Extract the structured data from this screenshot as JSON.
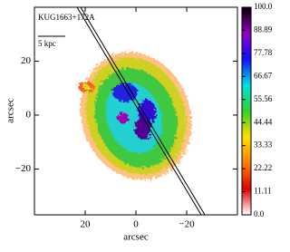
{
  "chart_data": {
    "type": "image",
    "annotation": "KUG1663+172A",
    "scale_label": "5 kpc",
    "xlabel": "arcsec",
    "ylabel": "arcsec",
    "xlim": [
      40,
      -40
    ],
    "ylim": [
      -37,
      40
    ],
    "xticks": [
      20,
      0,
      {
        "value": -20,
        "label": "−20"
      }
    ],
    "yticks": [
      20,
      0,
      {
        "value": -20,
        "label": "−20"
      }
    ],
    "colorbar": {
      "lim": [
        0,
        100
      ],
      "ticks": [
        {
          "value": 100,
          "label": "100.0"
        },
        88.89,
        77.78,
        66.67,
        55.56,
        44.44,
        33.33,
        22.22,
        11.11,
        {
          "value": 0,
          "label": "0.0"
        }
      ],
      "colormap": [
        "#ffffff",
        "#e00000",
        "#ff8000",
        "#ffe000",
        "#30d030",
        "#00e0e0",
        "#1010ff",
        "#9000c0",
        "#000000"
      ]
    }
  }
}
